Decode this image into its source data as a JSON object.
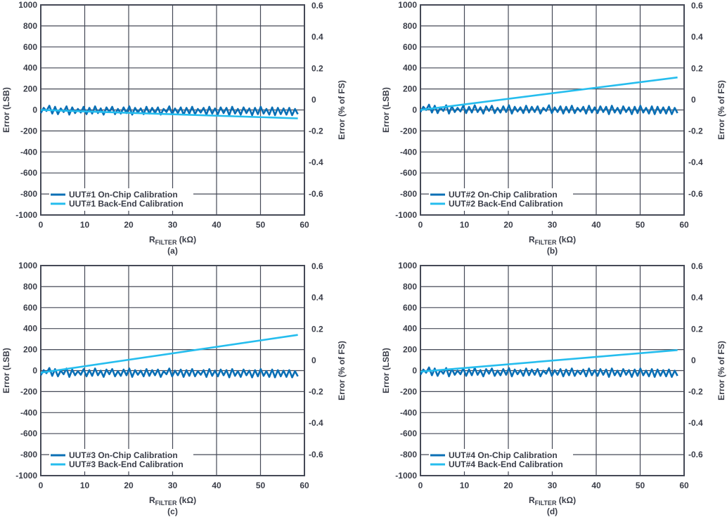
{
  "colors": {
    "on_chip": "#0a6fb5",
    "back_end": "#25bdee",
    "grid": "#454956",
    "text": "#3a3d48"
  },
  "chart_data": [
    {
      "type": "line",
      "caption": "(a)",
      "xlabel_main": "R",
      "xlabel_sub": "FILTER",
      "xlabel_unit": "(kΩ)",
      "ylabel": "Error (LSB)",
      "ylabel2": "Error (% of FS)",
      "xlim": [
        0,
        60
      ],
      "ylim": [
        -1000,
        1000
      ],
      "ylim2": [
        -0.74,
        0.6
      ],
      "xticks": [
        0,
        10,
        20,
        30,
        40,
        50,
        60
      ],
      "yticks": [
        1000,
        800,
        600,
        400,
        200,
        0,
        -200,
        -400,
        -600,
        -800,
        -1000
      ],
      "yticks2": [
        0.6,
        0.4,
        0.2,
        0,
        -0.2,
        -0.4,
        -0.6
      ],
      "grid": true,
      "legend_position": "bottom-left",
      "series": [
        {
          "name": "UUT#1 On-Chip Calibration",
          "x_start": 0,
          "x_step": 0.65,
          "y": [
            -30,
            20,
            -10,
            40,
            -35,
            30,
            -40,
            15,
            -20,
            35,
            -45,
            25,
            -30,
            10,
            -25,
            30,
            -40,
            20,
            -35,
            35,
            -30,
            15,
            -45,
            25,
            -20,
            30,
            -40,
            10,
            -35,
            25,
            -30,
            35,
            -45,
            20,
            -25,
            15,
            -40,
            30,
            -35,
            20,
            -30,
            25,
            -45,
            10,
            -20,
            35,
            -40,
            15,
            -30,
            25,
            -45,
            20,
            -35,
            30,
            -40,
            10,
            -25,
            20,
            -45,
            30,
            -35,
            15,
            -40,
            25,
            -30,
            20,
            -50,
            30,
            -35,
            10,
            -45,
            25,
            -30,
            15,
            -50,
            20,
            -40,
            30,
            -35,
            10,
            -45,
            25,
            -50,
            20,
            -40,
            15,
            -45,
            20,
            -50,
            10,
            -40
          ]
        },
        {
          "name": "UUT#1 Back-End Calibration",
          "x": [
            0,
            58.5
          ],
          "y": [
            0,
            -80
          ]
        }
      ]
    },
    {
      "type": "line",
      "caption": "(b)",
      "xlabel_main": "R",
      "xlabel_sub": "FILTER",
      "xlabel_unit": "(kΩ)",
      "ylabel": "Error (LSB)",
      "ylabel2": "Error (% of FS)",
      "xlim": [
        0,
        60
      ],
      "ylim": [
        -1000,
        1000
      ],
      "ylim2": [
        -0.74,
        0.6
      ],
      "xticks": [
        0,
        10,
        20,
        30,
        40,
        50,
        60
      ],
      "yticks": [
        1000,
        800,
        600,
        400,
        200,
        0,
        -200,
        -400,
        -600,
        -800,
        -1000
      ],
      "yticks2": [
        0.6,
        0.4,
        0.2,
        0,
        -0.2,
        -0.4,
        -0.6
      ],
      "grid": true,
      "legend_position": "bottom-left",
      "series": [
        {
          "name": "UUT#2 On-Chip Calibration",
          "x_start": 0,
          "x_step": 0.65,
          "y": [
            -20,
            30,
            0,
            50,
            -25,
            40,
            -30,
            25,
            -10,
            45,
            -35,
            35,
            -20,
            20,
            -15,
            40,
            -30,
            30,
            -25,
            45,
            -20,
            25,
            -35,
            35,
            -10,
            40,
            -30,
            20,
            -25,
            35,
            -20,
            45,
            -35,
            30,
            -15,
            25,
            -30,
            40,
            -25,
            30,
            -20,
            35,
            -35,
            20,
            -10,
            45,
            -30,
            25,
            -20,
            35,
            -35,
            30,
            -25,
            40,
            -30,
            20,
            -15,
            30,
            -35,
            40,
            -25,
            25,
            -30,
            35,
            -20,
            30,
            -40,
            40,
            -25,
            20,
            -35,
            35,
            -20,
            25,
            -40,
            30,
            -30,
            40,
            -25,
            20,
            -35,
            35,
            -40,
            30,
            -30,
            25,
            -35,
            30,
            -40,
            20,
            -30
          ]
        },
        {
          "name": "UUT#2 Back-End Calibration",
          "x": [
            0,
            58.5
          ],
          "y": [
            0,
            310
          ]
        }
      ]
    },
    {
      "type": "line",
      "caption": "(c)",
      "xlabel_main": "R",
      "xlabel_sub": "FILTER",
      "xlabel_unit": "(kΩ)",
      "ylabel": "Error (LSB)",
      "ylabel2": "Error (% of FS)",
      "xlim": [
        0,
        60
      ],
      "ylim": [
        -1000,
        1000
      ],
      "ylim2": [
        -0.74,
        0.6
      ],
      "xticks": [
        0,
        10,
        20,
        30,
        40,
        50,
        60
      ],
      "yticks": [
        1000,
        800,
        600,
        400,
        200,
        0,
        -200,
        -400,
        -600,
        -800,
        -1000
      ],
      "yticks2": [
        0.6,
        0.4,
        0.2,
        0,
        -0.2,
        -0.4,
        -0.6
      ],
      "grid": true,
      "legend_position": "bottom-left",
      "series": [
        {
          "name": "UUT#3 On-Chip Calibration",
          "x_start": 0,
          "x_step": 0.65,
          "y": [
            -45,
            5,
            -25,
            25,
            -50,
            15,
            -55,
            0,
            -35,
            20,
            -60,
            10,
            -45,
            -5,
            -40,
            15,
            -55,
            5,
            -50,
            20,
            -45,
            0,
            -60,
            10,
            -35,
            15,
            -55,
            -5,
            -50,
            10,
            -45,
            20,
            -60,
            5,
            -40,
            0,
            -55,
            15,
            -50,
            5,
            -45,
            10,
            -60,
            -5,
            -35,
            20,
            -55,
            0,
            -45,
            10,
            -60,
            5,
            -50,
            15,
            -55,
            -5,
            -40,
            5,
            -60,
            15,
            -50,
            0,
            -55,
            10,
            -45,
            5,
            -65,
            15,
            -50,
            -5,
            -60,
            10,
            -45,
            0,
            -65,
            5,
            -55,
            15,
            -50,
            -5,
            -60,
            10,
            -65,
            5,
            -55,
            0,
            -60,
            5,
            -65,
            -5,
            -55
          ]
        },
        {
          "name": "UUT#3 Back-End Calibration",
          "x": [
            0,
            58.5
          ],
          "y": [
            -20,
            340
          ]
        }
      ]
    },
    {
      "type": "line",
      "caption": "(d)",
      "xlabel_main": "R",
      "xlabel_sub": "FILTER",
      "xlabel_unit": "(kΩ)",
      "ylabel": "Error (LSB)",
      "ylabel2": "Error (% of FS)",
      "xlim": [
        0,
        60
      ],
      "ylim": [
        -1000,
        1000
      ],
      "ylim2": [
        -0.74,
        0.6
      ],
      "xticks": [
        0,
        10,
        20,
        30,
        40,
        50,
        60
      ],
      "yticks": [
        1000,
        800,
        600,
        400,
        200,
        0,
        -200,
        -400,
        -600,
        -800,
        -1000
      ],
      "yticks2": [
        0.6,
        0.4,
        0.2,
        0,
        -0.2,
        -0.4,
        -0.6
      ],
      "grid": true,
      "legend_position": "bottom-left",
      "series": [
        {
          "name": "UUT#4 On-Chip Calibration",
          "x_start": 0,
          "x_step": 0.65,
          "y": [
            -40,
            10,
            -20,
            30,
            -45,
            20,
            -50,
            5,
            -30,
            25,
            -55,
            15,
            -40,
            0,
            -35,
            20,
            -50,
            10,
            -45,
            25,
            -40,
            5,
            -55,
            15,
            -30,
            20,
            -50,
            0,
            -45,
            15,
            -40,
            25,
            -55,
            10,
            -35,
            5,
            -50,
            20,
            -45,
            10,
            -40,
            15,
            -55,
            0,
            -30,
            25,
            -50,
            5,
            -40,
            15,
            -55,
            10,
            -45,
            20,
            -50,
            0,
            -35,
            10,
            -55,
            20,
            -45,
            5,
            -50,
            15,
            -40,
            10,
            -60,
            20,
            -45,
            0,
            -55,
            15,
            -40,
            5,
            -60,
            10,
            -50,
            20,
            -45,
            0,
            -55,
            15,
            -60,
            10,
            -50,
            5,
            -55,
            10,
            -60,
            0,
            -50
          ]
        },
        {
          "name": "UUT#4 Back-End Calibration",
          "x": [
            0,
            58.5
          ],
          "y": [
            -10,
            195
          ]
        }
      ]
    }
  ]
}
